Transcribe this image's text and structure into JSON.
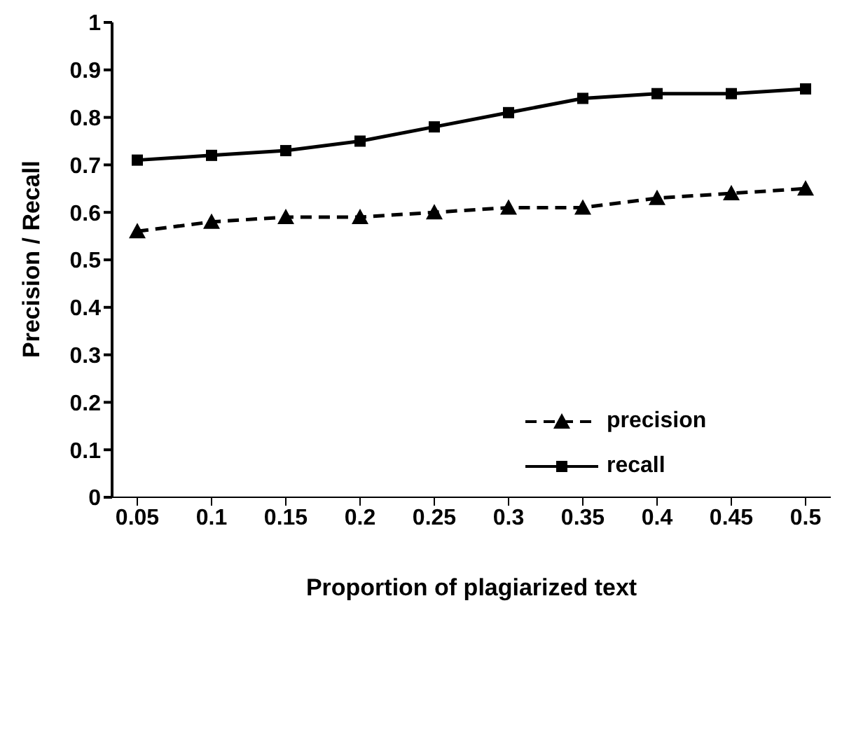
{
  "chart_data": {
    "type": "line",
    "xlabel": "Proportion of plagiarized text",
    "ylabel": "Precision / Recall",
    "categories": [
      "0.05",
      "0.1",
      "0.15",
      "0.2",
      "0.25",
      "0.3",
      "0.35",
      "0.4",
      "0.45",
      "0.5"
    ],
    "series": [
      {
        "name": "precision",
        "color": "#000000",
        "marker": "triangle",
        "line_style": "dashed",
        "values": [
          0.56,
          0.58,
          0.59,
          0.59,
          0.6,
          0.61,
          0.61,
          0.63,
          0.64,
          0.65
        ]
      },
      {
        "name": "recall",
        "color": "#000000",
        "marker": "square",
        "line_style": "solid",
        "values": [
          0.71,
          0.72,
          0.73,
          0.75,
          0.78,
          0.81,
          0.84,
          0.85,
          0.85,
          0.86
        ]
      }
    ],
    "ylim": [
      0,
      1
    ],
    "yticks": [
      0,
      0.1,
      0.2,
      0.3,
      0.4,
      0.5,
      0.6,
      0.7,
      0.8,
      0.9,
      1
    ],
    "grid": false,
    "legend": "right"
  }
}
